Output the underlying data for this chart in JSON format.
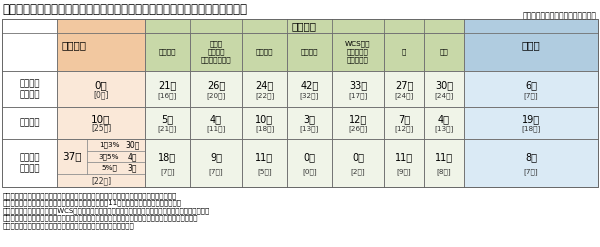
{
  "title": "》令和４年産米等の作付意向（３年産実績との比較、令和４年４月末時点）》",
  "title_prefix": "《",
  "subtitle": "下段【　】は１月末時点の作付意向",
  "footnotes": [
    "注１：令和４年度の意向（増加傾向、前年並み傾向、減少傾向）は、３年産実績との比較。",
    "　２：比較している主食用米の３年産実績は、令和３年11月統計部公表の主食用作付面積。",
    "　３：加工用米、飼料用米、WCS用稲、米粉用米、新市場開拓用米の３年産実績は、取組計画認定面積。",
    "　４：麦・大豆の３年産実績は、地方農政局等が都道府県再生協議会等に聞き取った面積（暂時作）。",
    "　５：備蓄米の３年産実績は、地域農業再生協議会が把握した面積。"
  ],
  "rows": [
    {
      "label": "前年より\n増加傾向",
      "main": "0県",
      "main_sub": "[0県]",
      "sub_cols": [
        "21県",
        "26県",
        "24県",
        "42県",
        "33県",
        "27県",
        "30県",
        "6県"
      ],
      "sub_cols_sub": [
        "[16県]",
        "[20県]",
        "[22県]",
        "[32県]",
        "[17県]",
        "[24県]",
        "[24県]",
        "[7県]"
      ]
    },
    {
      "label": "前年並み",
      "main": "10県",
      "main_sub": "[25県]",
      "sub_cols": [
        "5県",
        "4県",
        "10県",
        "3県",
        "12県",
        "7県",
        "4県",
        "19県"
      ],
      "sub_cols_sub": [
        "[21県]",
        "[11県]",
        "[18県]",
        "[13県]",
        "[26県]",
        "[12県]",
        "[13県]",
        "[18県]"
      ]
    },
    {
      "label": "前年より\n減少傾向",
      "main": "37県",
      "main_sub": "[22県]",
      "breakdown": [
        {
          "range": "1～3%",
          "val": "30県"
        },
        {
          "range": "3～5%",
          "val": "4県"
        },
        {
          "range": "5%超",
          "val": "3県"
        }
      ],
      "sub_cols": [
        "18県",
        "9県",
        "11県",
        "0県",
        "0県",
        "11県",
        "11県",
        "8県"
      ],
      "sub_cols_sub": [
        "[7県]",
        "[7県]",
        "[5県]",
        "[0県]",
        "[2県]",
        "[9県]",
        "[8県]",
        "[7県]"
      ]
    }
  ],
  "col_headers": [
    "加工用米",
    "新市場\n開拓用米\n（輸出用米等）",
    "米粉用米",
    "飼料用米",
    "WCS用稲\n（稲発酵粗\n飼料用稲）",
    "麦",
    "大豆"
  ],
  "bg_main_header": "#f2c8a0",
  "bg_strategic_header": "#c8d8a8",
  "bg_備蓄米_header": "#b0cce0",
  "bg_main_col": "#fae8d8",
  "bg_strategic_col": "#f0f4e8",
  "bg_備蓄米_col": "#daeaf5",
  "bg_white": "#ffffff",
  "border_color": "#909090",
  "text_color": "#000000",
  "sub_text_color": "#333333"
}
